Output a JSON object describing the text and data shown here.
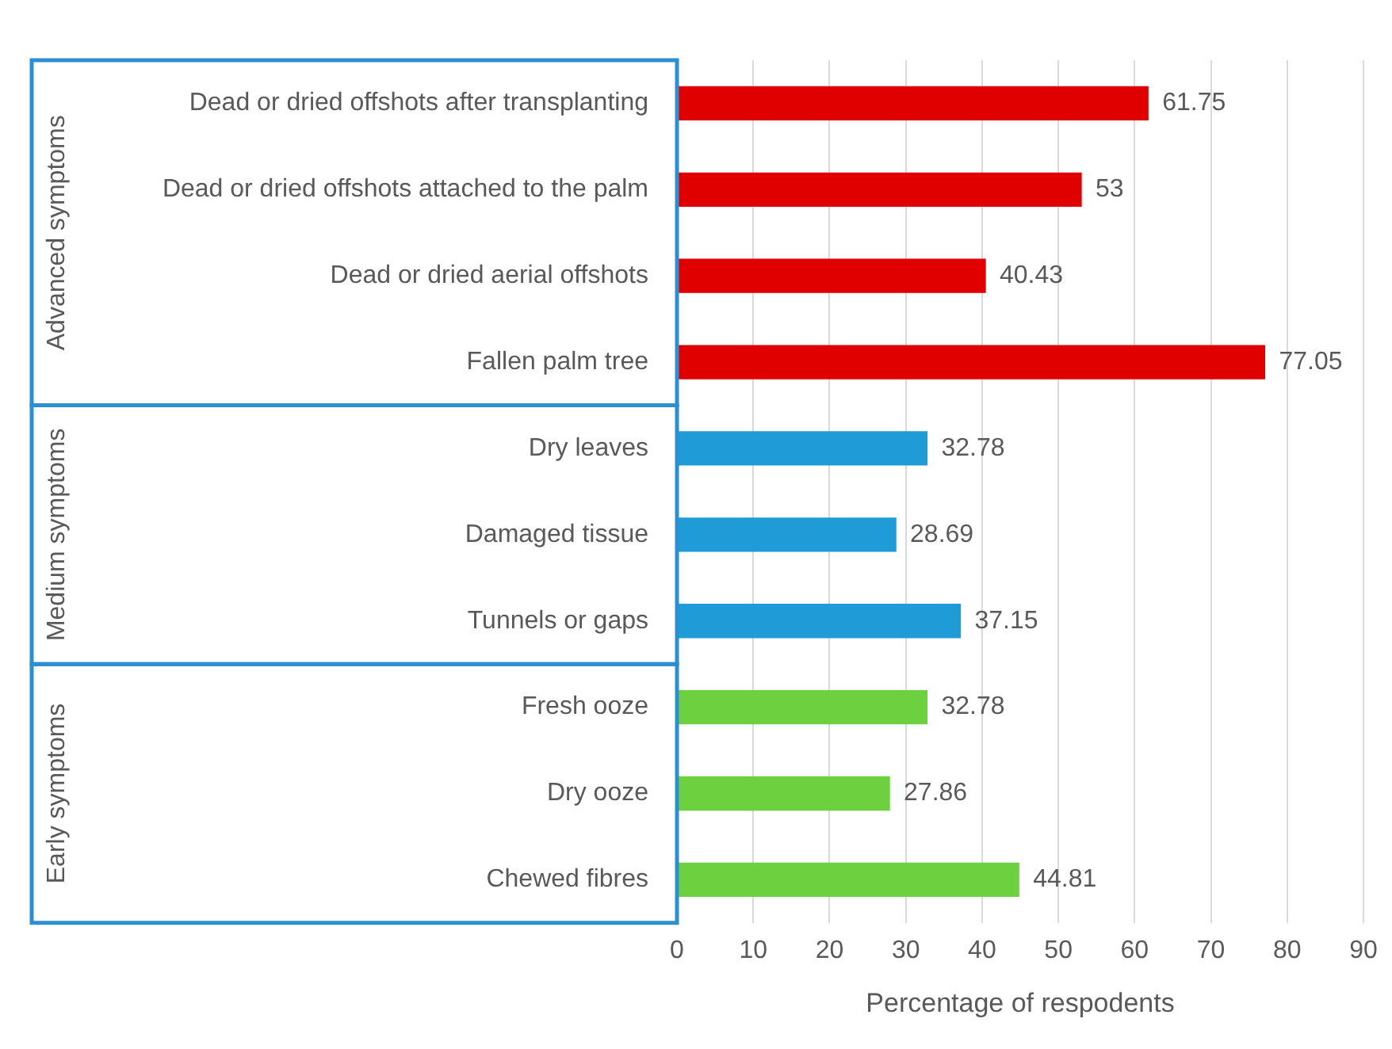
{
  "chart_data": {
    "type": "bar",
    "orientation": "horizontal",
    "xlabel": "Percentage of respodents",
    "categories": [
      "Dead or dried offshots after transplanting",
      "Dead or dried offshots attached to the palm",
      "Dead or dried aerial offshots",
      "Fallen palm tree",
      "Dry leaves",
      "Damaged tissue",
      "Tunnels or gaps",
      "Fresh ooze",
      "Dry ooze",
      "Chewed fibres"
    ],
    "series": [
      {
        "color": "#e00000",
        "values": [
          61.75,
          53,
          40.43,
          77.05,
          null,
          null,
          null,
          null,
          null,
          null
        ]
      },
      {
        "color": "#1f9bd8",
        "values": [
          null,
          null,
          null,
          null,
          32.78,
          28.69,
          37.15,
          null,
          null,
          null
        ]
      },
      {
        "color": "#6dd13f",
        "values": [
          null,
          null,
          null,
          null,
          null,
          null,
          null,
          32.78,
          27.86,
          44.81
        ]
      }
    ],
    "annotations": [
      "Advanced symptoms",
      "Medium symptoms",
      "Early symptoms"
    ],
    "xlim": [
      0,
      90
    ],
    "xticks": [
      0,
      10,
      20,
      30,
      40,
      50,
      60,
      70,
      80,
      90
    ],
    "grid": "x",
    "legend": false,
    "data_labels": true
  }
}
